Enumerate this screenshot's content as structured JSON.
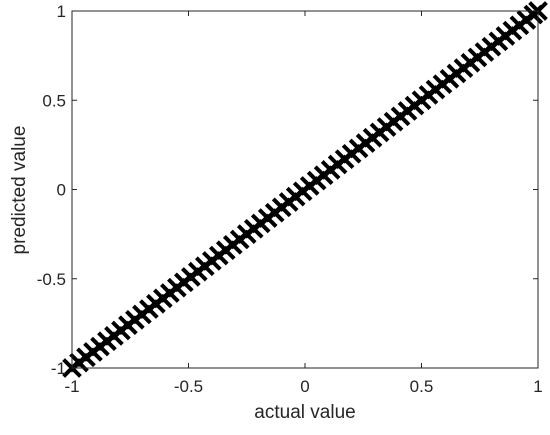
{
  "chart_data": {
    "type": "scatter",
    "title": "",
    "xlabel": "actual value",
    "ylabel": "predicted value",
    "xlim": [
      -1,
      1
    ],
    "ylim": [
      -1,
      1
    ],
    "xticks": [
      -1,
      -0.5,
      0,
      0.5,
      1
    ],
    "yticks": [
      -1,
      -0.5,
      0,
      0.5,
      1
    ],
    "xtick_labels": [
      "-1",
      "-0.5",
      "0",
      "0.5",
      "1"
    ],
    "ytick_labels": [
      "-1",
      "-0.5",
      "0",
      "0.5",
      "1"
    ],
    "grid": false,
    "legend": "none",
    "marker": "x",
    "marker_color": "#000000",
    "series": [
      {
        "x": [
          -1.0,
          -0.97,
          -0.94,
          -0.91,
          -0.88,
          -0.85,
          -0.82,
          -0.79,
          -0.76,
          -0.73,
          -0.7,
          -0.67,
          -0.64,
          -0.61,
          -0.58,
          -0.55,
          -0.52,
          -0.49,
          -0.46,
          -0.43,
          -0.4,
          -0.37,
          -0.34,
          -0.31,
          -0.28,
          -0.25,
          -0.22,
          -0.19,
          -0.16,
          -0.13,
          -0.1,
          -0.07,
          -0.04,
          -0.01,
          0.02,
          0.05,
          0.08,
          0.11,
          0.14,
          0.17,
          0.2,
          0.23,
          0.26,
          0.29,
          0.32,
          0.35,
          0.38,
          0.41,
          0.44,
          0.47,
          0.5,
          0.53,
          0.56,
          0.59,
          0.62,
          0.65,
          0.68,
          0.71,
          0.74,
          0.77,
          0.8,
          0.83,
          0.86,
          0.89,
          0.92,
          0.95,
          0.98,
          1.0
        ],
        "y": [
          -1.0,
          -0.97,
          -0.94,
          -0.91,
          -0.88,
          -0.85,
          -0.82,
          -0.79,
          -0.76,
          -0.73,
          -0.7,
          -0.67,
          -0.64,
          -0.61,
          -0.58,
          -0.55,
          -0.52,
          -0.49,
          -0.46,
          -0.43,
          -0.4,
          -0.37,
          -0.34,
          -0.31,
          -0.28,
          -0.25,
          -0.22,
          -0.19,
          -0.16,
          -0.13,
          -0.1,
          -0.07,
          -0.04,
          -0.01,
          0.02,
          0.05,
          0.08,
          0.11,
          0.14,
          0.17,
          0.2,
          0.23,
          0.26,
          0.29,
          0.32,
          0.35,
          0.38,
          0.41,
          0.44,
          0.47,
          0.5,
          0.53,
          0.56,
          0.59,
          0.62,
          0.65,
          0.68,
          0.71,
          0.74,
          0.77,
          0.8,
          0.83,
          0.86,
          0.89,
          0.92,
          0.95,
          0.98,
          1.0
        ]
      }
    ]
  }
}
